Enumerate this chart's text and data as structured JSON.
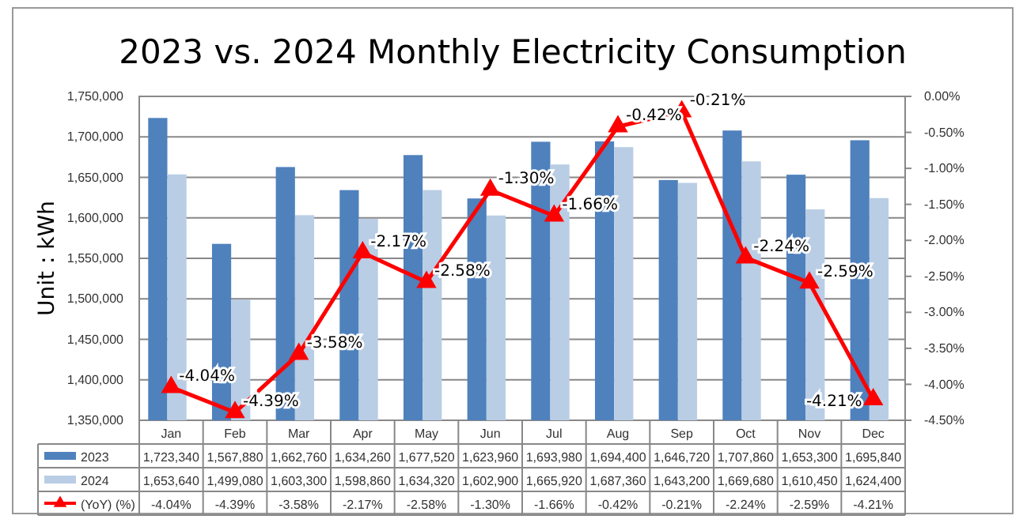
{
  "chart_data": {
    "type": "bar",
    "title": "2023 vs. 2024 Monthly Electricity Consumption",
    "ylabel": "Unit : kWh",
    "categories": [
      "Jan",
      "Feb",
      "Mar",
      "Apr",
      "May",
      "Jun",
      "Jul",
      "Aug",
      "Sep",
      "Oct",
      "Nov",
      "Dec"
    ],
    "series": [
      {
        "name": "2023",
        "color": "#4f81bd",
        "values": [
          1723340,
          1567880,
          1662760,
          1634260,
          1677520,
          1623960,
          1693980,
          1694400,
          1646720,
          1707860,
          1653300,
          1695840
        ],
        "value_labels": [
          "1,723,340",
          "1,567,880",
          "1,662,760",
          "1,634,260",
          "1,677,520",
          "1,623,960",
          "1,693,980",
          "1,694,400",
          "1,646,720",
          "1,707,860",
          "1,653,300",
          "1,695,840"
        ]
      },
      {
        "name": "2024",
        "color": "#b9cde5",
        "values": [
          1653640,
          1499080,
          1603300,
          1598860,
          1634320,
          1602900,
          1665920,
          1687360,
          1643200,
          1669680,
          1610450,
          1624400
        ],
        "value_labels": [
          "1,653,640",
          "1,499,080",
          "1,603,300",
          "1,598,860",
          "1,634,320",
          "1,602,900",
          "1,665,920",
          "1,687,360",
          "1,643,200",
          "1,669,680",
          "1,610,450",
          "1,624,400"
        ]
      },
      {
        "name": "(YoY) (%)",
        "type": "line",
        "axis": "y2",
        "color": "#ff0000",
        "marker": "triangle",
        "line_style": "solid",
        "values": [
          -4.04,
          -4.39,
          -3.58,
          -2.17,
          -2.58,
          -1.3,
          -1.66,
          -0.42,
          -0.21,
          -2.24,
          -2.59,
          -4.21
        ],
        "value_labels": [
          "-4.04%",
          "-4.39%",
          "-3.58%",
          "-2.17%",
          "-2.58%",
          "-1.30%",
          "-1.66%",
          "-0.42%",
          "-0.21%",
          "-2.24%",
          "-2.59%",
          "-4.21%"
        ]
      }
    ],
    "ylim": [
      1350000,
      1750000
    ],
    "yticks": [
      {
        "value": 1350000,
        "label": "1,350,000"
      },
      {
        "value": 1400000,
        "label": "1,400,000"
      },
      {
        "value": 1450000,
        "label": "1,450,000"
      },
      {
        "value": 1500000,
        "label": "1,500,000"
      },
      {
        "value": 1550000,
        "label": "1,550,000"
      },
      {
        "value": 1600000,
        "label": "1,600,000"
      },
      {
        "value": 1650000,
        "label": "1,650,000"
      },
      {
        "value": 1700000,
        "label": "1,700,000"
      },
      {
        "value": 1750000,
        "label": "1,750,000"
      }
    ],
    "y2lim": [
      -4.5,
      0
    ],
    "y2ticks": [
      {
        "value": -4.5,
        "label": "-4.50%"
      },
      {
        "value": -4,
        "label": "-4.00%"
      },
      {
        "value": -3.5,
        "label": "-3.50%"
      },
      {
        "value": -3,
        "label": "-3.00%"
      },
      {
        "value": -2.5,
        "label": "-2.50%"
      },
      {
        "value": -2,
        "label": "-2.00%"
      },
      {
        "value": -1.5,
        "label": "-1.50%"
      },
      {
        "value": -1,
        "label": "-1.00%"
      },
      {
        "value": -0.5,
        "label": "-0.50%"
      },
      {
        "value": 0,
        "label": "0.00%"
      }
    ],
    "grid": "y",
    "legend": "bottom"
  }
}
